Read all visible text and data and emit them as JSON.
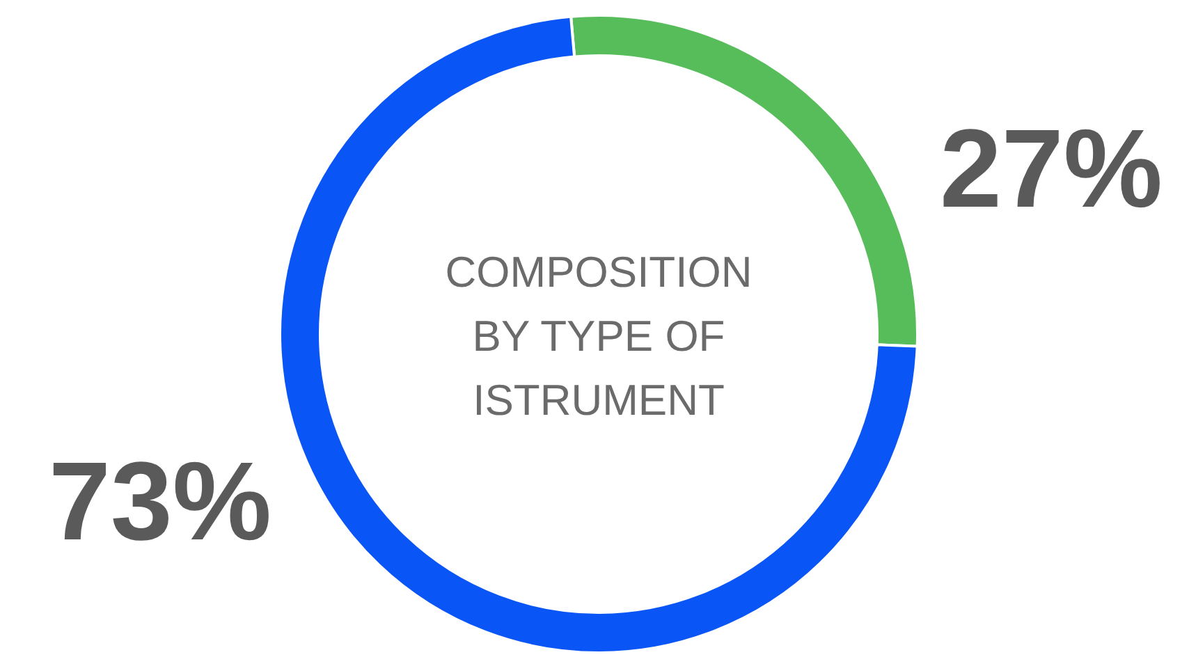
{
  "chart_data": {
    "type": "donut",
    "title": "COMPOSITION BY TYPE OF ISTRUMENT",
    "categories": [
      null,
      null
    ],
    "values": [
      27,
      73
    ],
    "value_labels": [
      "27%",
      "73%"
    ],
    "colors": [
      "#57bd5b",
      "#0a55f5"
    ]
  }
}
